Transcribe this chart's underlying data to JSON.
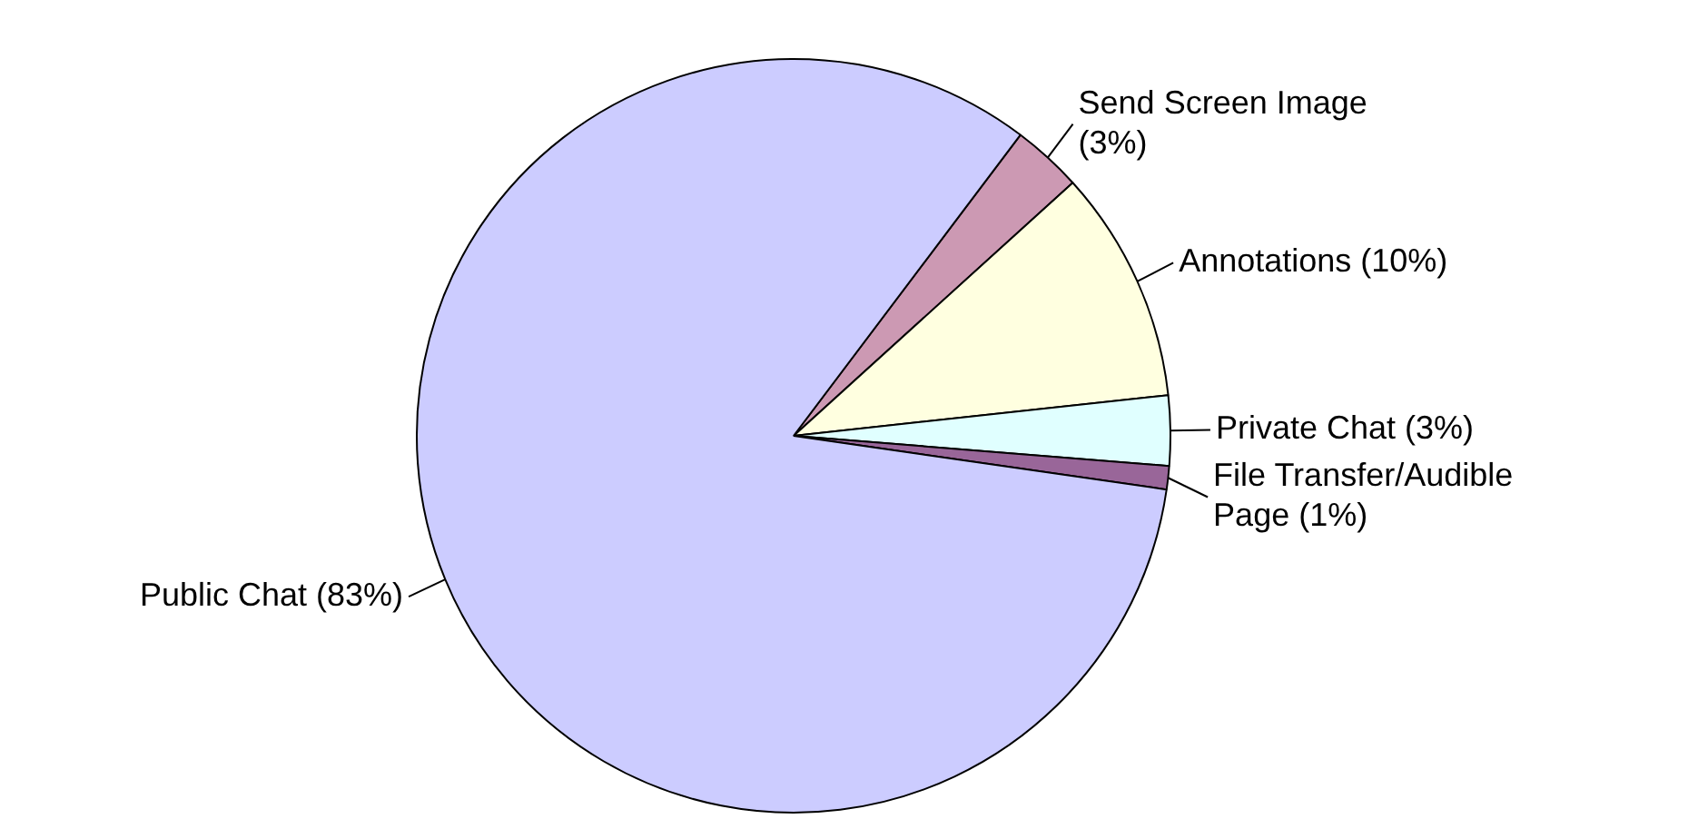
{
  "chart_data": {
    "type": "pie",
    "categories": [
      "Send Screen Image",
      "Annotations",
      "Private Chat",
      "File Transfer/Audible Page",
      "Public Chat"
    ],
    "values": [
      3,
      10,
      3,
      1,
      83
    ],
    "value_labels": [
      "(3%)",
      "(10%)",
      "(3%)",
      "(1%)",
      "(83%)"
    ],
    "colors": [
      "#cc99b3",
      "#ffffe0",
      "#e0ffff",
      "#996699",
      "#ccccff"
    ],
    "legend": false
  }
}
